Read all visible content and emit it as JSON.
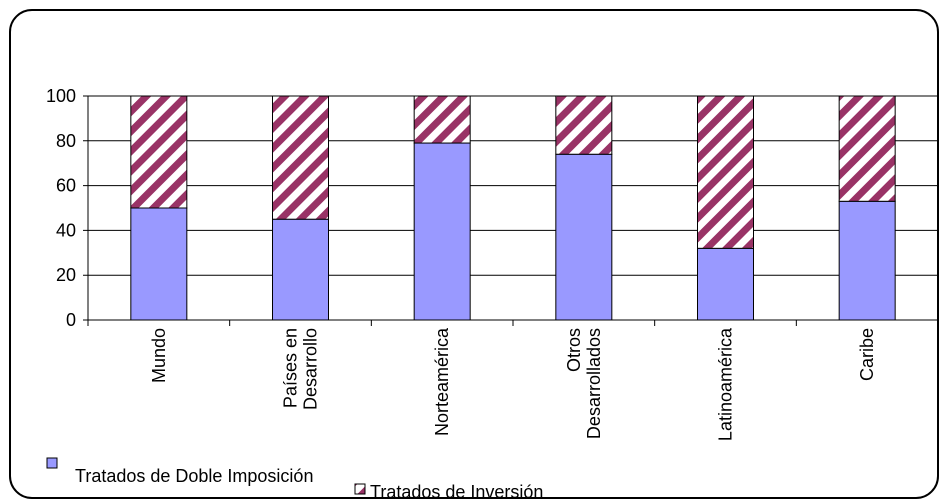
{
  "chart_data": {
    "type": "stacked_bar",
    "categories": [
      "Mundo",
      "Países en Desarrollo",
      "Norteamérica",
      "Otros Desarrollados",
      "Latinoamérica",
      "Caribe"
    ],
    "series": [
      {
        "name": "Tratados de Doble Imposición",
        "color": "#9999ff",
        "values": [
          50,
          45,
          79,
          74,
          32,
          53
        ]
      },
      {
        "name": "Tratados de Inversión",
        "color": "#993366",
        "pattern": "diagonal",
        "values": [
          50,
          55,
          21,
          26,
          68,
          47
        ]
      }
    ],
    "ylim": [
      0,
      100
    ],
    "yticks": [
      0,
      20,
      40,
      60,
      80,
      100
    ],
    "grid": true
  }
}
